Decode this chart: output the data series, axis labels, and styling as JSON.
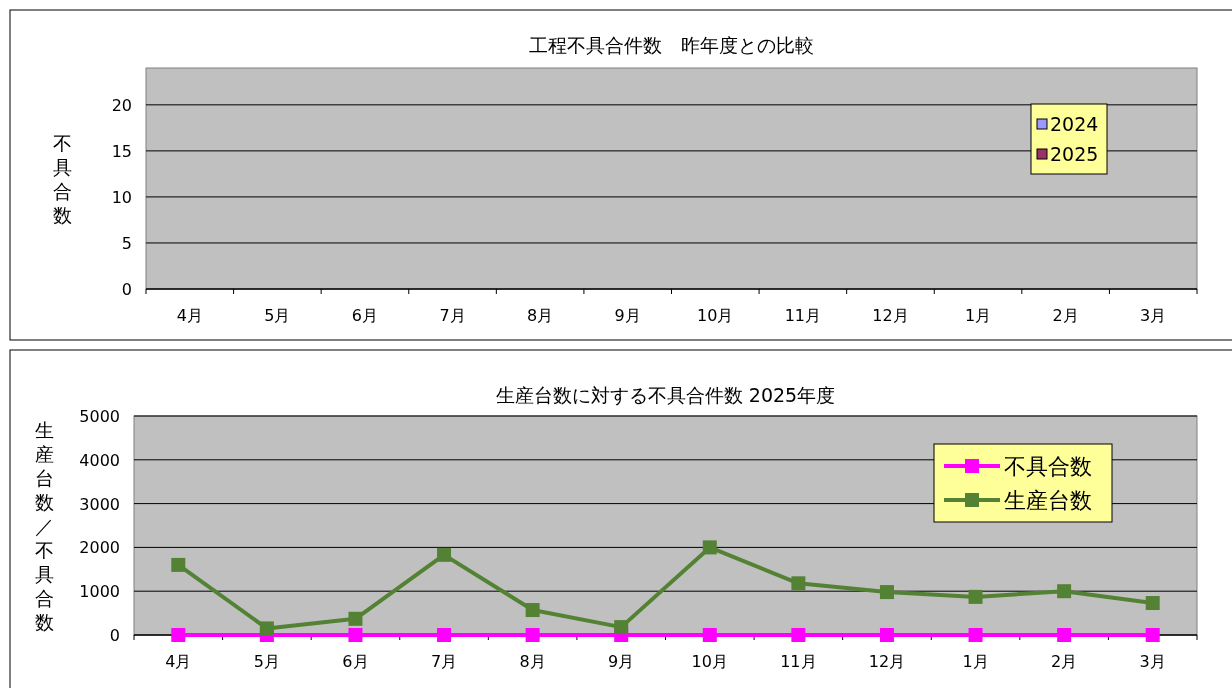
{
  "chart_data": [
    {
      "type": "bar",
      "title": "工程不具合件数　昨年度との比較",
      "ylabel": "不具合数",
      "categories": [
        "4月",
        "5月",
        "6月",
        "7月",
        "8月",
        "9月",
        "10月",
        "11月",
        "12月",
        "1月",
        "2月",
        "3月"
      ],
      "series": [
        {
          "name": "2024",
          "color": "#9999ff",
          "values": [
            0,
            0,
            0,
            0,
            0,
            0,
            0,
            0,
            0,
            0,
            0,
            0
          ]
        },
        {
          "name": "2025",
          "color": "#993366",
          "values": [
            0,
            0,
            0,
            0,
            0,
            0,
            0,
            0,
            0,
            0,
            0,
            0
          ]
        }
      ],
      "ylim": [
        0,
        24
      ],
      "yticks": [
        0,
        5,
        10,
        15,
        20
      ],
      "grid": "y",
      "legend": "top right"
    },
    {
      "type": "line",
      "title": "生産台数に対する不具合件数 2025年度",
      "ylabel": "生産台数／不具合数",
      "categories": [
        "4月",
        "5月",
        "6月",
        "7月",
        "8月",
        "9月",
        "10月",
        "11月",
        "12月",
        "1月",
        "2月",
        "3月"
      ],
      "series": [
        {
          "name": "不具合数",
          "color": "#ff00ff",
          "values": [
            0,
            0,
            0,
            0,
            0,
            0,
            0,
            0,
            0,
            0,
            0,
            0
          ]
        },
        {
          "name": "生産台数",
          "color": "#548235",
          "values": [
            1600,
            150,
            370,
            1830,
            570,
            180,
            2000,
            1180,
            980,
            870,
            1000,
            730
          ]
        }
      ],
      "ylim": [
        0,
        5000
      ],
      "yticks": [
        0,
        1000,
        2000,
        3000,
        4000,
        5000
      ],
      "grid": "y",
      "legend": "top right",
      "marker": "square"
    }
  ]
}
